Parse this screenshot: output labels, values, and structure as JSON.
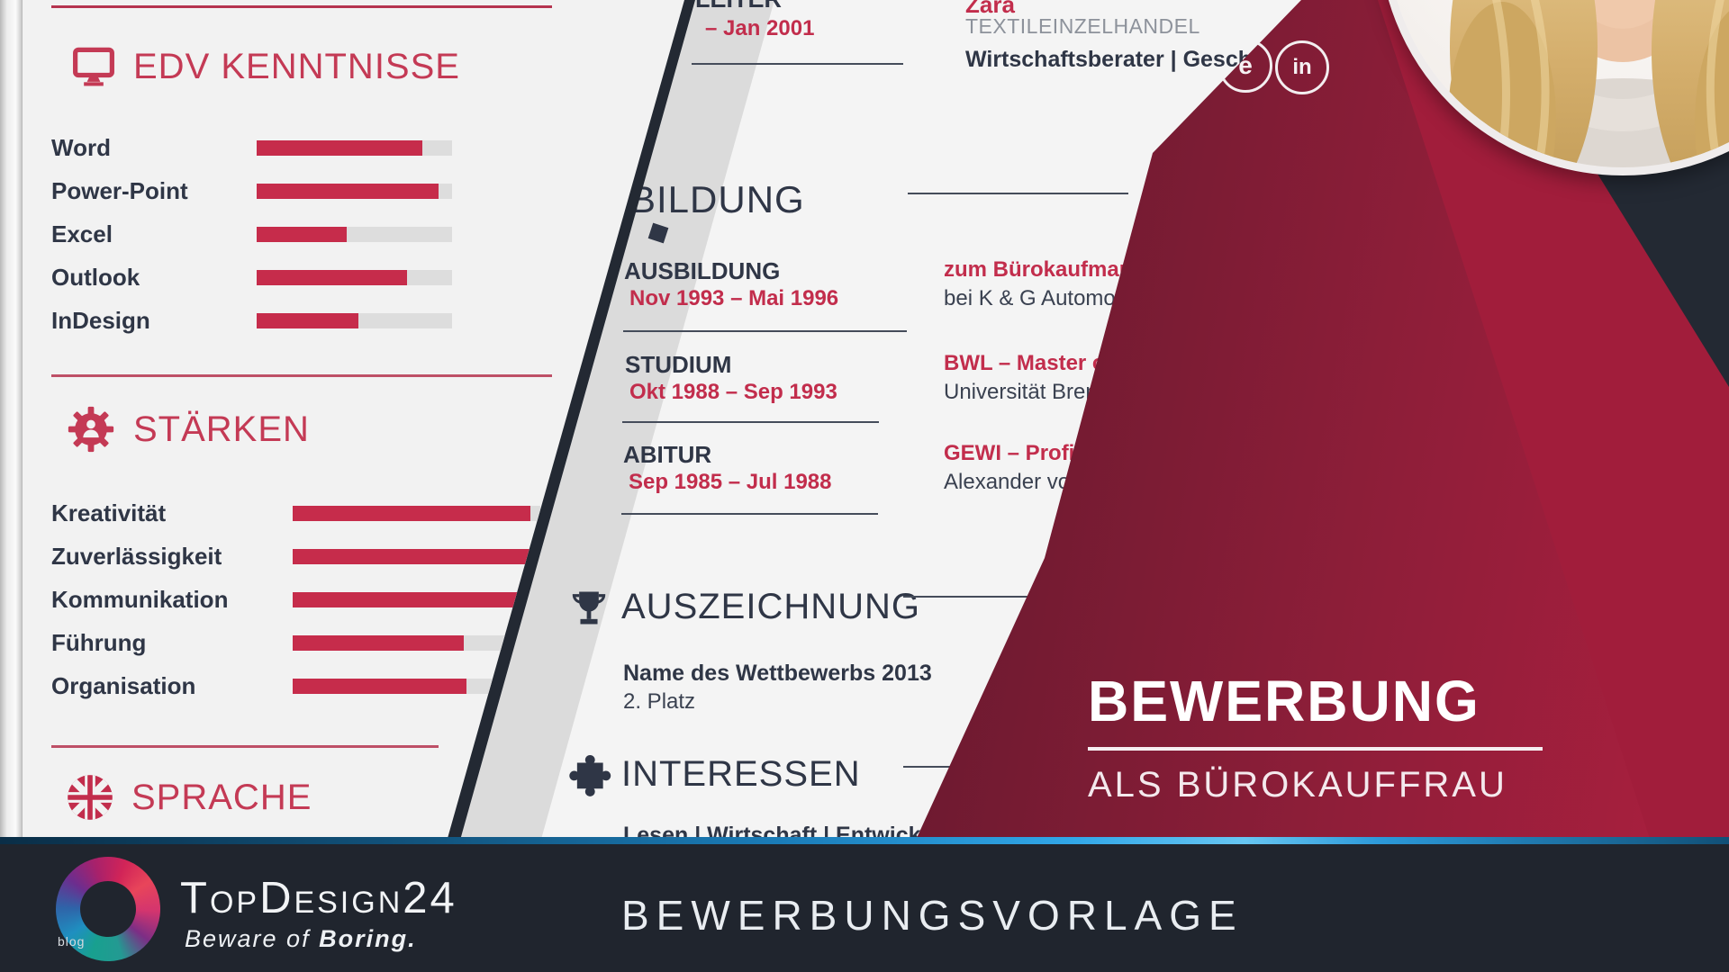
{
  "colors": {
    "accent_red": "#c22d4c",
    "bar_fill": "#c62c4b",
    "navy_background": "#232933",
    "maroon_wedge": "#6d1a30",
    "crimson_triangle": "#a11d3b",
    "page_background": "#f2f2f2",
    "footer_bar": "#20252e",
    "blue_stripe": "#31a7e8"
  },
  "left_page": {
    "edv": {
      "title": "EDV KENNTNISSE",
      "icon": "monitor",
      "skills": [
        {
          "label": "Word",
          "level": 85
        },
        {
          "label": "Power-Point",
          "level": 93
        },
        {
          "label": "Excel",
          "level": 46
        },
        {
          "label": "Outlook",
          "level": 77
        },
        {
          "label": "InDesign",
          "level": 52
        }
      ]
    },
    "staerken": {
      "title": "STÄRKEN",
      "icon": "gear-person",
      "skills": [
        {
          "label": "Kreativität",
          "level": 96
        },
        {
          "label": "Zuverlässigkeit",
          "level": 97
        },
        {
          "label": "Kommunikation",
          "level": 99
        },
        {
          "label": "Führung",
          "level": 69
        },
        {
          "label": "Organisation",
          "level": 70
        }
      ]
    },
    "sprache": {
      "title": "SPRACHE",
      "icon": "uk-flag"
    }
  },
  "middle_page": {
    "experience": {
      "title_fragment": "LEITER",
      "date_fragment": "– Jan 2001",
      "company": "Zara",
      "industry": "TEXTILEINZELHANDEL",
      "role": "Wirtschaftsberater | Geschäfts"
    },
    "education": {
      "title": "BILDUNG",
      "entries": [
        {
          "label": "AUSBILDUNG",
          "period": "Nov 1993 – Mai 1996",
          "degree": "zum Bürokaufmann",
          "institution": "bei K & G Automobili"
        },
        {
          "label": "STUDIUM",
          "period": "Okt 1988 – Sep 1993",
          "degree": "BWL – Master o",
          "institution": "Universität Brem"
        },
        {
          "label": "ABITUR",
          "period": "Sep 1985 – Jul 1988",
          "degree": "GEWI – Profi",
          "institution": "Alexander von"
        }
      ]
    },
    "award": {
      "title": "AUSZEICHNUNG",
      "icon": "trophy",
      "name": "Name des Wettbewerbs 2013",
      "rank": "2. Platz"
    },
    "interests": {
      "title": "INTERESSEN",
      "icon": "puzzle",
      "items": "Lesen | Wirtschaft | Entwicklung | Fot"
    }
  },
  "cover": {
    "title": "BEWERBUNG",
    "subtitle": "ALS BÜROKAUFFRAU",
    "social": [
      {
        "glyph": "e",
        "name": "xing"
      },
      {
        "glyph": "in",
        "name": "linkedin"
      }
    ]
  },
  "footer": {
    "blog": "blog",
    "brand_parts": [
      "T",
      "OP",
      "D",
      "ESIGN",
      "24"
    ],
    "tagline_light": "Beware of ",
    "tagline_bold": "Boring.",
    "label": "BEWERBUNGSVORLAGE"
  }
}
